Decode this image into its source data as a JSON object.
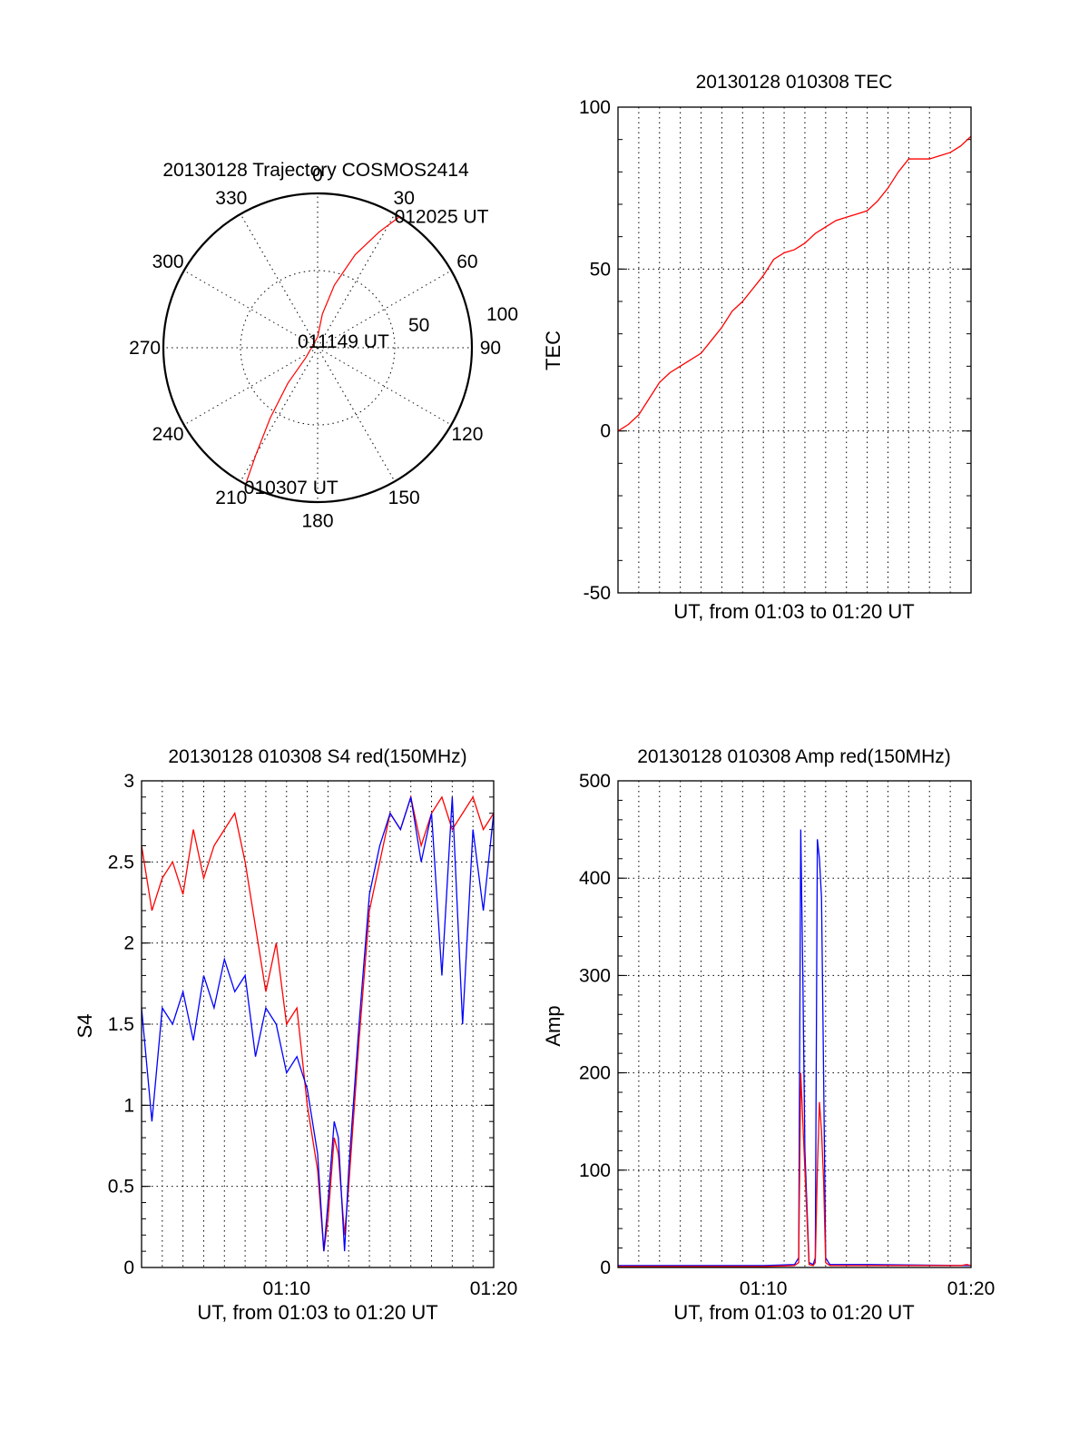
{
  "chart_data": [
    {
      "type": "polar",
      "title": "20130128 Trajectory COSMOS2414",
      "angle_labels": [
        "0",
        "30",
        "60",
        "90",
        "120",
        "150",
        "180",
        "210",
        "240",
        "270",
        "300",
        "330"
      ],
      "radius_labels": [
        "50",
        "100"
      ],
      "colors": {
        "track": "#ff0000"
      },
      "series": [
        {
          "points": [
            [
              32,
              100
            ],
            [
              28,
              85
            ],
            [
              22,
              65
            ],
            [
              15,
              42
            ],
            [
              8,
              22
            ],
            [
              0,
              7
            ],
            [
              230,
              10
            ],
            [
              220,
              30
            ],
            [
              214,
              55
            ],
            [
              210,
              80
            ],
            [
              208,
              98
            ]
          ]
        }
      ],
      "annotations": [
        {
          "text": "012025 UT",
          "az": 33,
          "r": 100
        },
        {
          "text": "011149 UT",
          "az": 0,
          "r": 0
        },
        {
          "text": "010307 UT",
          "az": 208,
          "r": 98
        }
      ]
    },
    {
      "type": "line",
      "title": "20130128 010308 TEC",
      "xlabel": "UT, from 01:03 to 01:20 UT",
      "ylabel": "TEC",
      "xlim": [
        0,
        17
      ],
      "ylim": [
        -50,
        100
      ],
      "yticks": [
        "-50",
        "0",
        "50",
        "100"
      ],
      "grid": true,
      "colors": {
        "red": "#ff0000"
      },
      "series": [
        {
          "color": "red",
          "x": [
            0,
            0.5,
            1,
            1.5,
            2,
            2.5,
            3,
            3.5,
            4,
            4.5,
            5,
            5.5,
            6,
            6.5,
            7,
            7.5,
            8,
            8.5,
            9,
            9.5,
            10,
            10.5,
            11,
            11.5,
            12,
            12.5,
            13,
            13.5,
            14,
            14.5,
            15,
            15.5,
            16,
            16.5,
            17
          ],
          "y": [
            0,
            2,
            5,
            10,
            15,
            18,
            20,
            22,
            24,
            28,
            32,
            37,
            40,
            44,
            48,
            53,
            55,
            56,
            58,
            61,
            63,
            65,
            66,
            67,
            68,
            71,
            75,
            80,
            84,
            84,
            84,
            85,
            86,
            88,
            91
          ]
        }
      ]
    },
    {
      "type": "line",
      "title": "20130128 010308 S4 red(150MHz)",
      "xlabel": "UT, from 01:03 to 01:20 UT",
      "ylabel": "S4",
      "xlim": [
        0,
        17
      ],
      "ylim": [
        0,
        3
      ],
      "xticks": [
        {
          "x": 7,
          "label": "01:10"
        },
        {
          "x": 17,
          "label": "01:20"
        }
      ],
      "yticks": [
        "0",
        "0.5",
        "1",
        "1.5",
        "2",
        "2.5",
        "3"
      ],
      "grid": true,
      "colors": {
        "red": "#ff0000",
        "blue": "#0000ff"
      },
      "series": [
        {
          "color": "red",
          "x": [
            0,
            0.5,
            1,
            1.5,
            2,
            2.5,
            3,
            3.5,
            4,
            4.5,
            5,
            5.5,
            6,
            6.5,
            7,
            7.5,
            8,
            8.5,
            8.8,
            9,
            9.3,
            9.5,
            9.8,
            10,
            10.5,
            11,
            11.5,
            12,
            12.5,
            13,
            13.5,
            14,
            14.5,
            15,
            15.5,
            16,
            16.5,
            17
          ],
          "y": [
            2.6,
            2.2,
            2.4,
            2.5,
            2.3,
            2.7,
            2.4,
            2.6,
            2.7,
            2.8,
            2.5,
            2.1,
            1.7,
            2.0,
            1.5,
            1.6,
            1.0,
            0.6,
            0.1,
            0.3,
            0.8,
            0.7,
            0.2,
            0.5,
            1.4,
            2.2,
            2.5,
            2.8,
            2.7,
            2.9,
            2.6,
            2.8,
            2.9,
            2.7,
            2.8,
            2.9,
            2.7,
            2.8
          ]
        },
        {
          "color": "blue",
          "x": [
            0,
            0.5,
            1,
            1.5,
            2,
            2.5,
            3,
            3.5,
            4,
            4.5,
            5,
            5.5,
            6,
            6.5,
            7,
            7.5,
            8,
            8.5,
            8.8,
            9,
            9.3,
            9.5,
            9.8,
            10,
            10.5,
            11,
            11.5,
            12,
            12.5,
            13,
            13.5,
            14,
            14.5,
            15,
            15.5,
            16,
            16.5,
            17
          ],
          "y": [
            1.6,
            0.9,
            1.6,
            1.5,
            1.7,
            1.4,
            1.8,
            1.6,
            1.9,
            1.7,
            1.8,
            1.3,
            1.6,
            1.5,
            1.2,
            1.3,
            1.1,
            0.7,
            0.1,
            0.4,
            0.9,
            0.8,
            0.1,
            0.6,
            1.5,
            2.3,
            2.6,
            2.8,
            2.7,
            2.9,
            2.5,
            2.8,
            1.8,
            2.9,
            1.5,
            2.7,
            2.2,
            2.8
          ]
        }
      ]
    },
    {
      "type": "line",
      "title": "20130128 010308 Amp red(150MHz)",
      "xlabel": "UT, from 01:03 to 01:20 UT",
      "ylabel": "Amp",
      "xlim": [
        0,
        17
      ],
      "ylim": [
        0,
        500
      ],
      "xticks": [
        {
          "x": 7,
          "label": "01:10"
        },
        {
          "x": 17,
          "label": "01:20"
        }
      ],
      "yticks": [
        "0",
        "100",
        "200",
        "300",
        "400",
        "500"
      ],
      "grid": true,
      "colors": {
        "red": "#ff0000",
        "blue": "#0000ff"
      },
      "series": [
        {
          "color": "blue",
          "x": [
            0,
            7,
            8.5,
            8.7,
            8.8,
            8.9,
            9.0,
            9.2,
            9.4,
            9.5,
            9.6,
            9.7,
            9.8,
            9.9,
            10.0,
            10.2,
            12,
            17
          ],
          "y": [
            2,
            2,
            3,
            10,
            450,
            300,
            120,
            5,
            3,
            10,
            440,
            420,
            380,
            200,
            10,
            3,
            3,
            2
          ]
        },
        {
          "color": "red",
          "x": [
            0,
            7,
            8.5,
            8.7,
            8.8,
            8.9,
            9.0,
            9.2,
            9.4,
            9.5,
            9.6,
            9.7,
            9.8,
            9.9,
            10.0,
            10.2,
            12,
            16.5,
            16.8,
            17
          ],
          "y": [
            1,
            1,
            2,
            5,
            200,
            150,
            100,
            3,
            2,
            5,
            100,
            170,
            140,
            90,
            5,
            2,
            2,
            2,
            3,
            2
          ]
        }
      ]
    }
  ]
}
